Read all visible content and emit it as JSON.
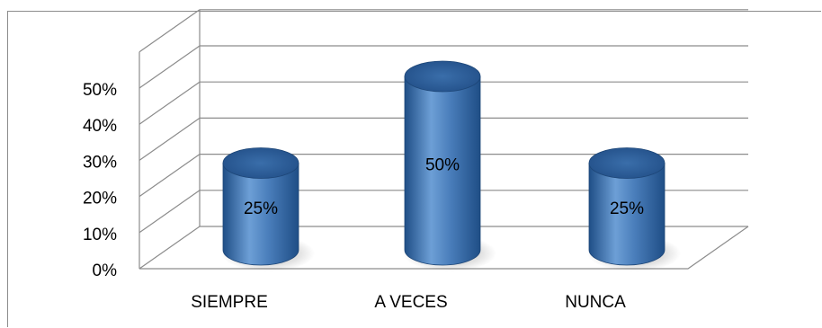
{
  "chart_data": {
    "type": "bar",
    "style": "3d-cylinder",
    "categories": [
      "SIEMPRE",
      "A VECES",
      "NUNCA"
    ],
    "values": [
      25,
      50,
      25
    ],
    "data_labels": [
      "25%",
      "50%",
      "25%"
    ],
    "ylim": [
      0,
      60
    ],
    "yticks": [
      {
        "value": 0,
        "label": "0%"
      },
      {
        "value": 10,
        "label": "10%"
      },
      {
        "value": 20,
        "label": "20%"
      },
      {
        "value": 30,
        "label": "30%"
      },
      {
        "value": 40,
        "label": "40%"
      },
      {
        "value": 50,
        "label": "50%"
      }
    ],
    "grid": true,
    "legend": "none",
    "title": "",
    "xlabel": "",
    "ylabel": "",
    "colors": {
      "bar_light": "#6d9fd6",
      "bar_mid": "#4a7ebb",
      "bar_dark": "#1f4e86",
      "bar_top": "#2e5f99",
      "gridline": "#8c8c8c",
      "text": "#000000"
    }
  }
}
